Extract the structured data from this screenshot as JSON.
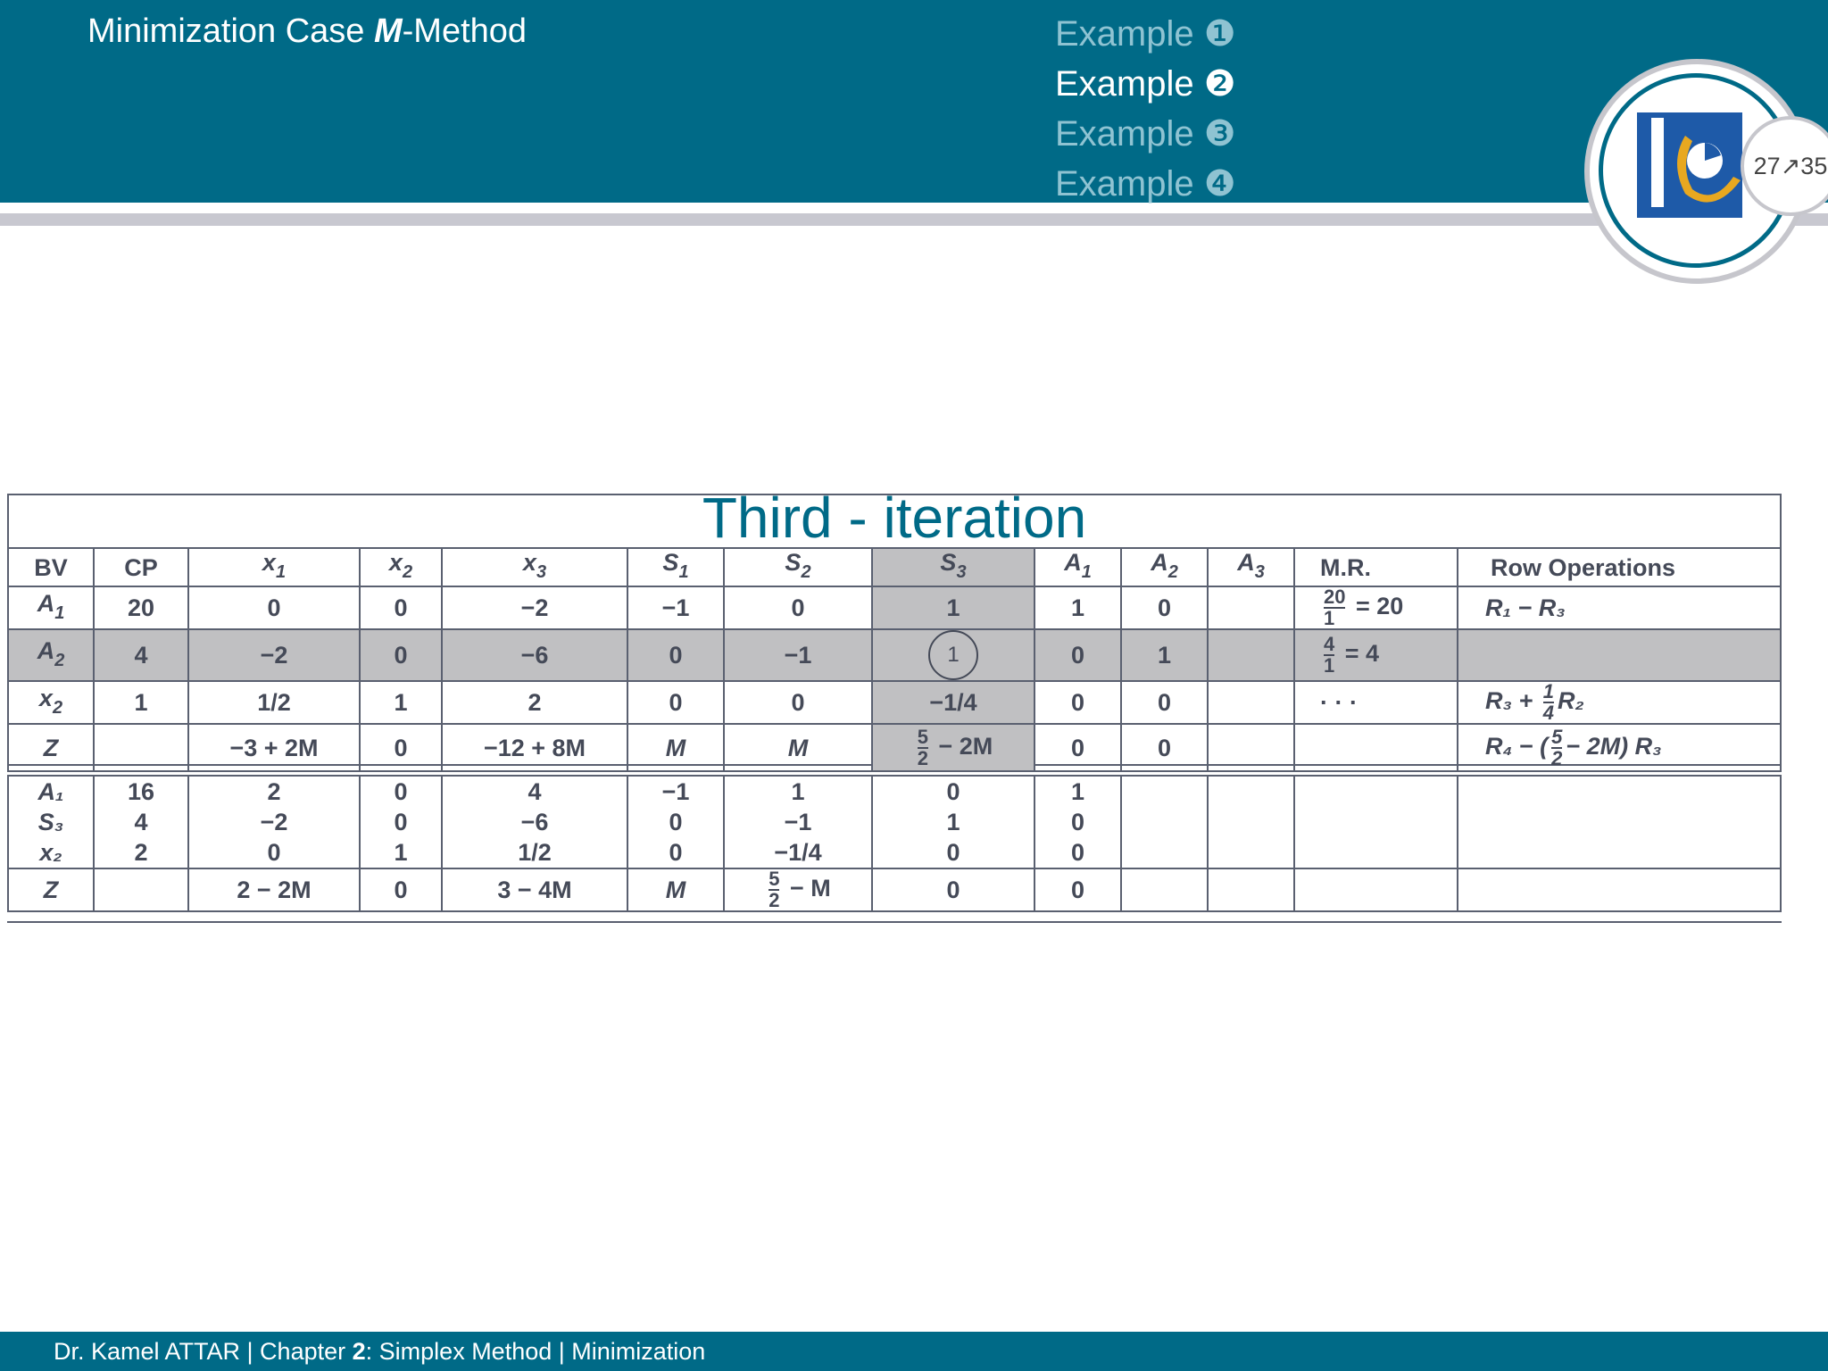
{
  "header": {
    "title_pre": "Minimization Case ",
    "title_m": "M",
    "title_post": "-Method",
    "nav": [
      "Example ❶",
      "Example ❷",
      "Example ❸",
      "Example ❹"
    ],
    "page": "27↗35"
  },
  "slide": {
    "iteration_title": "Third - iteration"
  },
  "table_top": {
    "headers": {
      "bv": "BV",
      "cp": "CP",
      "x1": "x",
      "x2": "x",
      "x3": "x",
      "s1": "S",
      "s2": "S",
      "s3": "S",
      "a1": "A",
      "a2": "A",
      "a3": "A",
      "mr": "M.R.",
      "ops": "Row Operations",
      "sub1": "1",
      "sub2": "2",
      "sub3": "3"
    },
    "rows": [
      {
        "bv": "A",
        "bv_sub": "1",
        "cp": "20",
        "x1": "0",
        "x2": "0",
        "x3": "−2",
        "s1": "−1",
        "s2": "0",
        "s3": "1",
        "a1": "1",
        "a2": "0",
        "a3": "",
        "mr_num": "20",
        "mr_den": "1",
        "mr_rest": "= 20",
        "ops": "R₁ − R₃"
      },
      {
        "bv": "A",
        "bv_sub": "2",
        "cp": "4",
        "x1": "−2",
        "x2": "0",
        "x3": "−6",
        "s1": "0",
        "s2": "−1",
        "s3": "1",
        "a1": "0",
        "a2": "1",
        "a3": "",
        "mr_num": "4",
        "mr_den": "1",
        "mr_rest": "= 4",
        "ops": ""
      },
      {
        "bv": "x",
        "bv_sub": "2",
        "cp": "1",
        "x1": "1/2",
        "x2": "1",
        "x3": "2",
        "s1": "0",
        "s2": "0",
        "s3": "−1/4",
        "a1": "0",
        "a2": "0",
        "a3": "",
        "mr": "· · ·",
        "ops_pre": "R₃ + ",
        "ops_num": "1",
        "ops_den": "4",
        "ops_post": "R₂"
      },
      {
        "bv": "Z",
        "cp": "",
        "x1": "−3 + 2M",
        "x2": "0",
        "x3": "−12 + 8M",
        "s1": "M",
        "s2": "M",
        "s3_num": "5",
        "s3_den": "2",
        "s3_post": "− 2M",
        "a1": "0",
        "a2": "0",
        "a3": "",
        "mr": "",
        "ops_pre": "R₄ − (",
        "ops_num": "5",
        "ops_den": "2",
        "ops_post": "− 2M) R₃"
      }
    ]
  },
  "table_bottom": {
    "bv": [
      "A₁",
      "S₃",
      "x₂"
    ],
    "cp": [
      "16",
      "4",
      "2"
    ],
    "x1": [
      "2",
      "−2",
      "0"
    ],
    "x2": [
      "0",
      "0",
      "1"
    ],
    "x3": [
      "4",
      "−6",
      "1/2"
    ],
    "s1": [
      "−1",
      "0",
      "0"
    ],
    "s2": [
      "1",
      "−1",
      "−1/4"
    ],
    "s3": [
      "0",
      "1",
      "0"
    ],
    "a1": [
      "1",
      "0",
      "0"
    ],
    "z": {
      "bv": "Z",
      "x1": "2 − 2M",
      "x2": "0",
      "x3": "3 − 4M",
      "s1": "M",
      "s2_num": "5",
      "s2_den": "2",
      "s2_post": "− M",
      "s3": "0",
      "a1": "0"
    }
  },
  "footer": {
    "author": "Dr. Kamel ATTAR | Chapter ",
    "chapter": "2",
    "rest": ": Simplex Method | Minimization"
  }
}
